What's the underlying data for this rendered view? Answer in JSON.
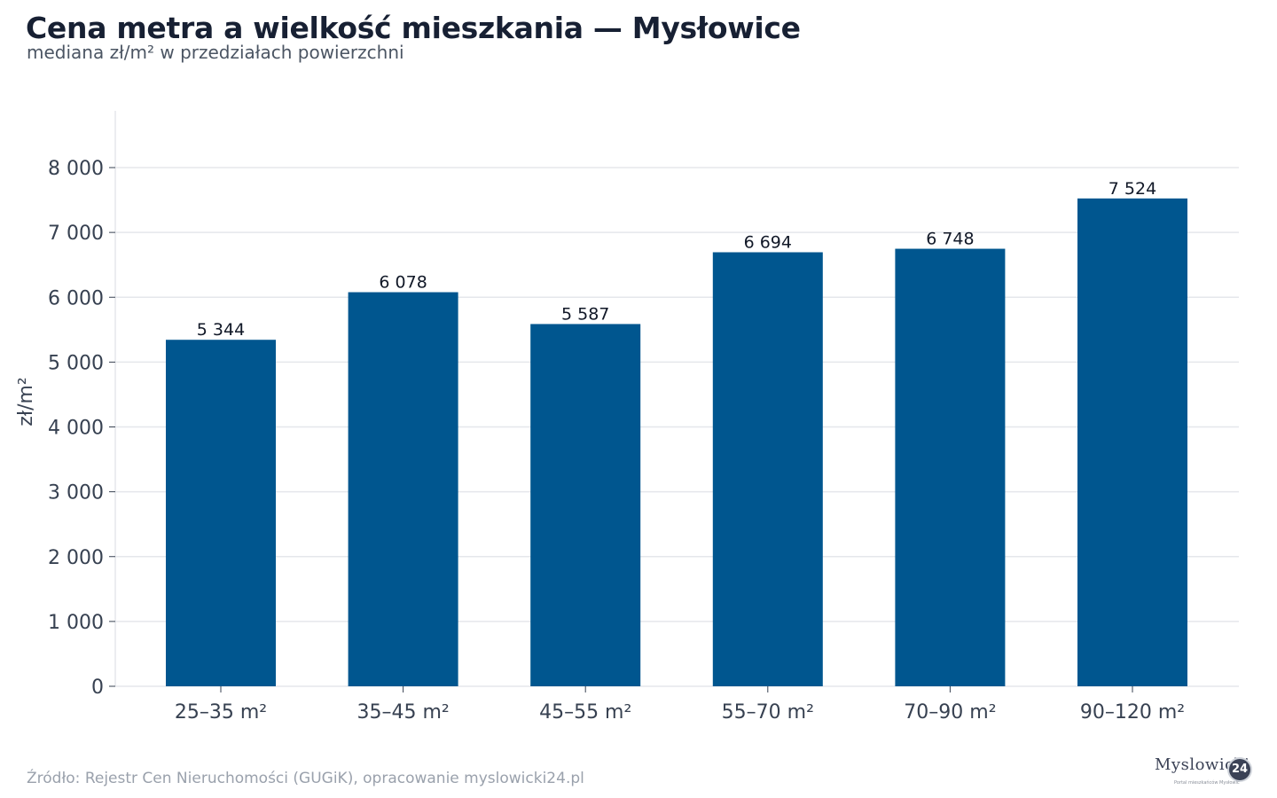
{
  "header": {
    "title": "Cena metra a wielkość mieszkania — Mysłowice",
    "subtitle": "mediana zł/m² w przedziałach powierzchni"
  },
  "footer": {
    "source": "Źródło: Rejestr Cen Nieruchomości (GUGiK), opracowanie myslowicki24.pl",
    "logo_text": "Myslowicki",
    "logo_badge": "24",
    "logo_tag": "Portal mieszkańców Mysłowic"
  },
  "colors": {
    "bar": "#00568f",
    "grid": "#e5e7eb",
    "axis_text": "#374151"
  },
  "chart_data": {
    "type": "bar",
    "title": "Cena metra a wielkość mieszkania — Mysłowice",
    "subtitle": "mediana zł/m² w przedziałach powierzchni",
    "xlabel": "",
    "ylabel": "zł/m²",
    "categories": [
      "25–35 m²",
      "35–45 m²",
      "45–55 m²",
      "55–70 m²",
      "70–90 m²",
      "90–120 m²"
    ],
    "values": [
      5344,
      6078,
      5587,
      6694,
      6748,
      7524
    ],
    "value_labels": [
      "5 344",
      "6 078",
      "5 587",
      "6 694",
      "6 748",
      "7 524"
    ],
    "ylim": [
      0,
      8000
    ],
    "yticks": [
      0,
      1000,
      2000,
      3000,
      4000,
      5000,
      6000,
      7000,
      8000
    ],
    "ytick_labels": [
      "0",
      "1 000",
      "2 000",
      "3 000",
      "4 000",
      "5 000",
      "6 000",
      "7 000",
      "8 000"
    ],
    "grid": true,
    "legend": "none"
  }
}
